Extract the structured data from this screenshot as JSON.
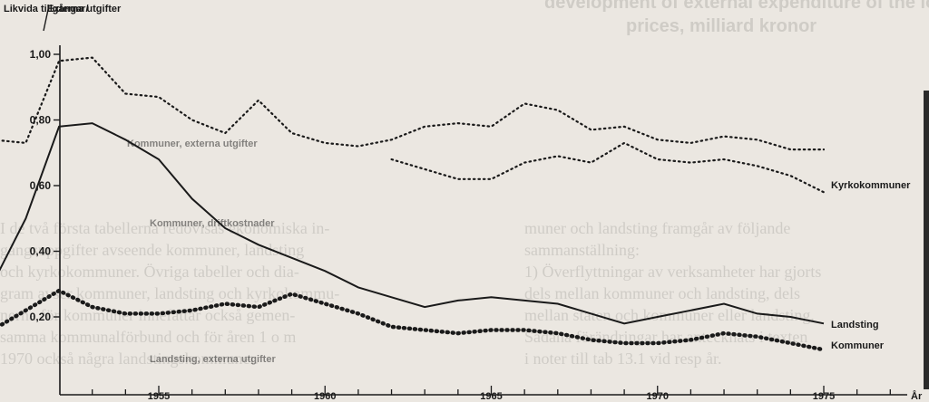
{
  "chart_data": {
    "type": "line",
    "ylabel_left": "Likvida tillgångar/",
    "ylabel_right": "Externa utgifter",
    "xlabel": "År",
    "ylim": [
      0.1,
      1.0
    ],
    "xlim": [
      1950,
      1978
    ],
    "yticks": [
      "1,00",
      "0,80",
      "0,60",
      "0,40",
      "0,20"
    ],
    "ytick_values": [
      1.0,
      0.8,
      0.6,
      0.4,
      0.2
    ],
    "xticks": [
      "1955",
      "1960",
      "1965",
      "1970",
      "1975"
    ],
    "xtick_values": [
      1955,
      1960,
      1965,
      1970,
      1975
    ],
    "annotations": [
      "Kommuner, externa utgifter",
      "Kommuner, driftkostnader",
      "Landsting, externa utgifter"
    ],
    "series": [
      {
        "name": "",
        "style": "dotted",
        "x": [
          1950,
          1951,
          1952,
          1953,
          1954,
          1955,
          1956,
          1957,
          1958,
          1959,
          1960,
          1961,
          1962,
          1963,
          1964,
          1965,
          1966,
          1967,
          1968,
          1969,
          1970,
          1971,
          1972,
          1973,
          1974,
          1975
        ],
        "y": [
          0.74,
          0.73,
          0.98,
          0.99,
          0.88,
          0.87,
          0.8,
          0.76,
          0.86,
          0.76,
          0.73,
          0.72,
          0.74,
          0.78,
          0.79,
          0.78,
          0.85,
          0.83,
          0.77,
          0.78,
          0.74,
          0.73,
          0.75,
          0.74,
          0.71,
          0.71
        ]
      },
      {
        "name": "Kyrkokommuner",
        "style": "dotted",
        "x": [
          1962,
          1963,
          1964,
          1965,
          1966,
          1967,
          1968,
          1969,
          1970,
          1971,
          1972,
          1973,
          1974,
          1975
        ],
        "y": [
          0.68,
          0.65,
          0.62,
          0.62,
          0.67,
          0.69,
          0.67,
          0.73,
          0.68,
          0.67,
          0.68,
          0.66,
          0.63,
          0.58
        ]
      },
      {
        "name": "Landsting",
        "style": "solid",
        "x": [
          1950,
          1951,
          1952,
          1953,
          1954,
          1955,
          1956,
          1957,
          1958,
          1959,
          1960,
          1961,
          1962,
          1963,
          1964,
          1965,
          1966,
          1967,
          1968,
          1969,
          1970,
          1971,
          1972,
          1973,
          1974,
          1975
        ],
        "y": [
          0.3,
          0.5,
          0.78,
          0.79,
          0.74,
          0.68,
          0.56,
          0.47,
          0.42,
          0.38,
          0.34,
          0.29,
          0.26,
          0.23,
          0.25,
          0.26,
          0.25,
          0.24,
          0.21,
          0.18,
          0.2,
          0.22,
          0.24,
          0.21,
          0.2,
          0.18
        ]
      },
      {
        "name": "Kommuner",
        "style": "heavy-dotted",
        "x": [
          1950,
          1951,
          1952,
          1953,
          1954,
          1955,
          1956,
          1957,
          1958,
          1959,
          1960,
          1961,
          1962,
          1963,
          1964,
          1965,
          1966,
          1967,
          1968,
          1969,
          1970,
          1971,
          1972,
          1973,
          1974,
          1975
        ],
        "y": [
          0.16,
          0.22,
          0.28,
          0.23,
          0.21,
          0.21,
          0.22,
          0.24,
          0.23,
          0.27,
          0.24,
          0.21,
          0.17,
          0.16,
          0.15,
          0.16,
          0.16,
          0.15,
          0.13,
          0.12,
          0.12,
          0.13,
          0.15,
          0.14,
          0.12,
          0.1
        ]
      }
    ]
  }
}
